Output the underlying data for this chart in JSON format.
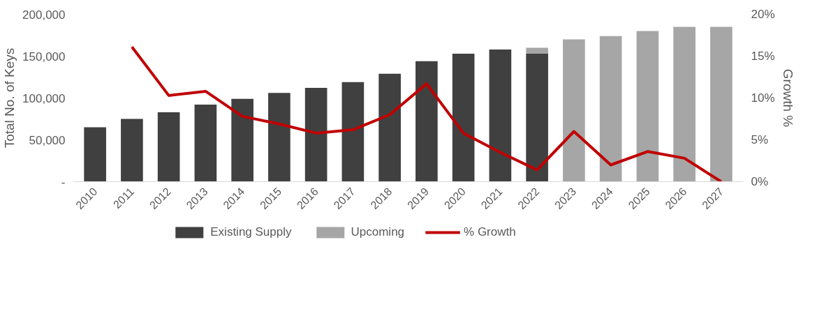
{
  "chart_data": {
    "type": "bar",
    "stacked": true,
    "ylabel": "Total No. of Keys",
    "y2label": "Growth %",
    "categories": [
      "2010",
      "2011",
      "2012",
      "2013",
      "2014",
      "2015",
      "2016",
      "2017",
      "2018",
      "2019",
      "2020",
      "2021",
      "2022",
      "2023",
      "2024",
      "2025",
      "2026",
      "2027"
    ],
    "series": [
      {
        "name": "Existing Supply",
        "color": "#404040",
        "values": [
          65000,
          75000,
          83000,
          92000,
          99000,
          106000,
          112000,
          119000,
          129000,
          144000,
          153000,
          158000,
          153000,
          null,
          null,
          null,
          null,
          null
        ]
      },
      {
        "name": "Upcoming",
        "color": "#a6a6a6",
        "values": [
          null,
          null,
          null,
          null,
          null,
          null,
          null,
          null,
          null,
          null,
          null,
          null,
          7000,
          170000,
          174000,
          180000,
          185000,
          185000
        ]
      },
      {
        "name": "% Growth",
        "type": "line",
        "axis": "y2",
        "color": "#c00000",
        "values": [
          null,
          16.1,
          10.3,
          10.8,
          7.8,
          6.9,
          5.8,
          6.2,
          8.0,
          11.7,
          5.8,
          3.5,
          1.4,
          6.0,
          2.0,
          3.6,
          2.8,
          0
        ]
      }
    ],
    "ylim": [
      0,
      200000
    ],
    "yticks": [
      {
        "value": 0,
        "label": "-"
      },
      {
        "value": 50000,
        "label": "50,000"
      },
      {
        "value": 100000,
        "label": "100,000"
      },
      {
        "value": 150000,
        "label": "150,000"
      },
      {
        "value": 200000,
        "label": "200,000"
      }
    ],
    "y2lim": [
      0,
      20
    ],
    "y2ticks": [
      {
        "value": 0,
        "label": "0%"
      },
      {
        "value": 5,
        "label": "5%"
      },
      {
        "value": 10,
        "label": "10%"
      },
      {
        "value": 15,
        "label": "15%"
      },
      {
        "value": 20,
        "label": "20%"
      }
    ],
    "grid": false,
    "legend": "bottom"
  }
}
